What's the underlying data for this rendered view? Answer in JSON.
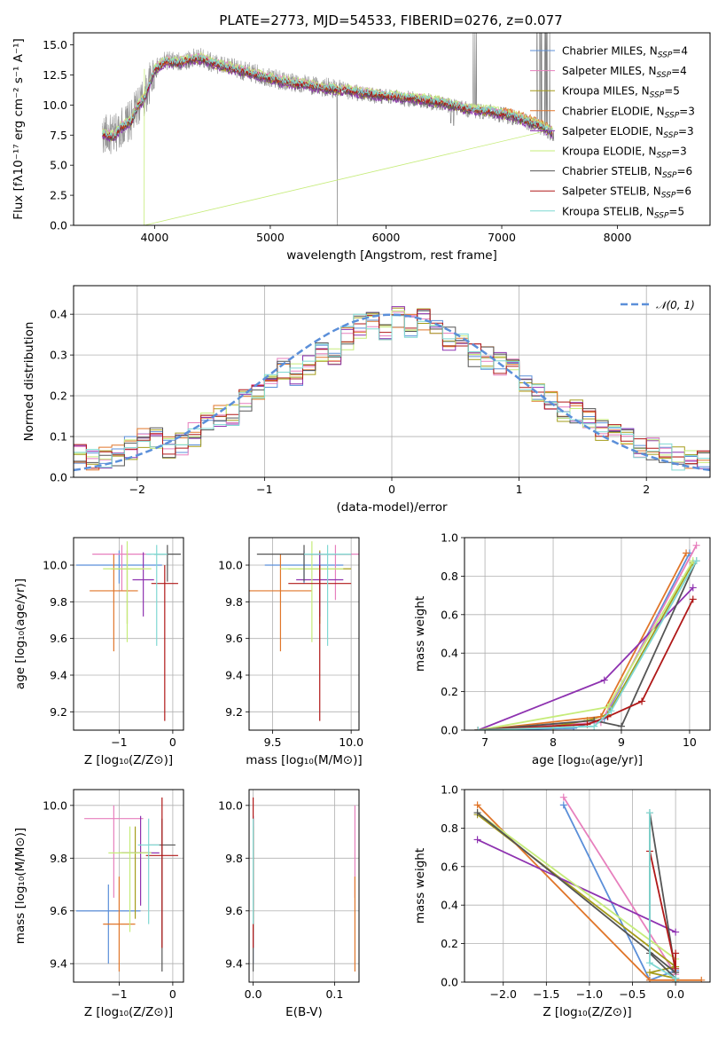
{
  "colors": {
    "Chabrier MILES": "#5b8fd9",
    "Salpeter MILES": "#e77fbd",
    "Kroupa MILES": "#a59c1a",
    "Chabrier ELODIE": "#e0762a",
    "Salpeter ELODIE": "#8e32b0",
    "Kroupa ELODIE": "#c6ec7a",
    "Chabrier STELIB": "#555555",
    "Salpeter STELIB": "#b01818",
    "Kroupa STELIB": "#7fd8d2",
    "grid": "#b0b0b0",
    "normal": "#5b8fd9"
  },
  "chart_data": [
    {
      "type": "line",
      "title": "PLATE=2773, MJD=54533, FIBERID=0276, z=0.077",
      "xlabel": "wavelength [Angstrom, rest frame]",
      "ylabel": "Flux [fλ10⁻¹⁷ erg cm⁻² s⁻¹ A⁻¹]",
      "xlim": [
        3300,
        8800
      ],
      "ylim": [
        0,
        16
      ],
      "xticks": [
        4000,
        5000,
        6000,
        7000,
        8000
      ],
      "yticks": [
        0.0,
        2.5,
        5.0,
        7.5,
        10.0,
        12.5,
        15.0
      ],
      "legend_position": "right",
      "series": [
        {
          "name": "Chabrier MILES, N_SSP=4"
        },
        {
          "name": "Salpeter MILES, N_SSP=4"
        },
        {
          "name": "Kroupa MILES, N_SSP=5"
        },
        {
          "name": "Chabrier ELODIE, N_SSP=3"
        },
        {
          "name": "Salpeter ELODIE, N_SSP=3"
        },
        {
          "name": "Kroupa ELODIE, N_SSP=3"
        },
        {
          "name": "Chabrier STELIB, N_SSP=6"
        },
        {
          "name": "Salpeter STELIB, N_SSP=6"
        },
        {
          "name": "Kroupa STELIB, N_SSP=5"
        }
      ],
      "spectrum_x": [
        3550,
        3650,
        3700,
        3800,
        3850,
        3920,
        3960,
        4000,
        4100,
        4200,
        4300,
        4400,
        4500,
        4700,
        4900,
        5100,
        5300,
        5500,
        5700,
        5900,
        6100,
        6300,
        6500,
        6700,
        6900,
        7100,
        7300,
        7450
      ],
      "spectrum_y": [
        7.5,
        7.3,
        8.0,
        8.6,
        9.8,
        10.6,
        11.8,
        12.8,
        13.6,
        13.4,
        13.7,
        13.8,
        13.4,
        12.9,
        12.4,
        11.9,
        11.6,
        11.3,
        11.1,
        10.8,
        10.6,
        10.4,
        10.1,
        9.6,
        9.4,
        9.0,
        8.3,
        7.6
      ]
    },
    {
      "type": "line",
      "xlabel": "(data-model)/error",
      "ylabel": "Normed distribution",
      "xlim": [
        -2.5,
        2.5
      ],
      "ylim": [
        0,
        0.47
      ],
      "xticks": [
        -2,
        -1,
        0,
        1,
        2
      ],
      "yticks": [
        0.0,
        0.1,
        0.2,
        0.3,
        0.4
      ],
      "grid": true,
      "legend_position": "top-right",
      "normal_label": "𝒩(0, 1)",
      "bin_edges": [
        -2.5,
        -2.4,
        -2.3,
        -2.2,
        -2.1,
        -2.0,
        -1.9,
        -1.8,
        -1.7,
        -1.6,
        -1.5,
        -1.4,
        -1.3,
        -1.2,
        -1.1,
        -1.0,
        -0.9,
        -0.8,
        -0.7,
        -0.6,
        -0.5,
        -0.4,
        -0.3,
        -0.2,
        -0.1,
        0.0,
        0.1,
        0.2,
        0.3,
        0.4,
        0.5,
        0.6,
        0.7,
        0.8,
        0.9,
        1.0,
        1.1,
        1.2,
        1.3,
        1.4,
        1.5,
        1.6,
        1.7,
        1.8,
        1.9,
        2.0,
        2.1,
        2.2,
        2.3,
        2.4,
        2.5
      ],
      "histogram_shape": [
        0.055,
        0.04,
        0.045,
        0.05,
        0.07,
        0.09,
        0.1,
        0.075,
        0.085,
        0.105,
        0.13,
        0.15,
        0.155,
        0.185,
        0.215,
        0.245,
        0.265,
        0.255,
        0.28,
        0.31,
        0.305,
        0.34,
        0.37,
        0.38,
        0.36,
        0.39,
        0.37,
        0.385,
        0.36,
        0.34,
        0.33,
        0.3,
        0.295,
        0.28,
        0.27,
        0.23,
        0.215,
        0.19,
        0.165,
        0.16,
        0.145,
        0.12,
        0.115,
        0.09,
        0.075,
        0.07,
        0.055,
        0.045,
        0.04,
        0.035
      ]
    },
    {
      "type": "scatter",
      "xlabel": "Z [log₁₀(Z/Z⊙)]",
      "ylabel": "age  [log₁₀(age/yr)]",
      "xlim": [
        -1.85,
        0.2
      ],
      "ylim": [
        9.1,
        10.15
      ],
      "xticks": [
        -1,
        0
      ],
      "yticks": [
        9.2,
        9.4,
        9.6,
        9.8,
        10.0
      ],
      "grid": true,
      "points": [
        {
          "series": "Chabrier MILES",
          "x": -1.0,
          "xerr": 0.8,
          "y": 10.0,
          "yerr": [
            0.1,
            0.08
          ]
        },
        {
          "series": "Salpeter MILES",
          "x": -0.95,
          "xerr": 0.55,
          "y": 10.06,
          "yerr": [
            0.2,
            0.05
          ]
        },
        {
          "series": "Kroupa MILES",
          "x": -0.85,
          "xerr": 0.3,
          "y": 9.98,
          "yerr": [
            0.3,
            0.1
          ]
        },
        {
          "series": "Chabrier ELODIE",
          "x": -1.1,
          "xerr": 0.45,
          "y": 9.86,
          "yerr": [
            0.33,
            0.2
          ]
        },
        {
          "series": "Salpeter ELODIE",
          "x": -0.55,
          "xerr": 0.2,
          "y": 9.92,
          "yerr": [
            0.2,
            0.15
          ]
        },
        {
          "series": "Kroupa ELODIE",
          "x": -0.85,
          "xerr": 0.45,
          "y": 9.98,
          "yerr": [
            0.4,
            0.15
          ]
        },
        {
          "series": "Chabrier STELIB",
          "x": -0.1,
          "xerr": 0.25,
          "y": 10.06,
          "yerr": [
            0.15,
            0.05
          ]
        },
        {
          "series": "Salpeter STELIB",
          "x": -0.15,
          "xerr": 0.25,
          "y": 9.9,
          "yerr": [
            0.75,
            0.1
          ]
        },
        {
          "series": "Kroupa STELIB",
          "x": -0.3,
          "xerr": 0.2,
          "y": 10.06,
          "yerr": [
            0.5,
            0.05
          ]
        }
      ]
    },
    {
      "type": "scatter",
      "xlabel": "mass [log₁₀(M/M⊙)]",
      "xlim": [
        9.35,
        10.05
      ],
      "ylim": [
        9.1,
        10.15
      ],
      "xticks": [
        9.5,
        10.0
      ],
      "yticks": [
        9.2,
        9.4,
        9.6,
        9.8,
        10.0
      ],
      "grid": true,
      "points": [
        {
          "series": "Chabrier MILES",
          "x": 9.7,
          "xerr": 0.25,
          "y": 10.0,
          "yerr": [
            0.1,
            0.08
          ]
        },
        {
          "series": "Salpeter MILES",
          "x": 9.9,
          "xerr": 0.2,
          "y": 10.06,
          "yerr": [
            0.25,
            0.05
          ]
        },
        {
          "series": "Kroupa MILES",
          "x": 9.8,
          "xerr": 0.2,
          "y": 9.98,
          "yerr": [
            0.3,
            0.1
          ]
        },
        {
          "series": "Chabrier ELODIE",
          "x": 9.55,
          "xerr": 0.2,
          "y": 9.86,
          "yerr": [
            0.33,
            0.2
          ]
        },
        {
          "series": "Salpeter ELODIE",
          "x": 9.8,
          "xerr": 0.15,
          "y": 9.92,
          "yerr": [
            0.2,
            0.15
          ]
        },
        {
          "series": "Kroupa ELODIE",
          "x": 9.75,
          "xerr": 0.2,
          "y": 9.98,
          "yerr": [
            0.4,
            0.15
          ]
        },
        {
          "series": "Chabrier STELIB",
          "x": 9.7,
          "xerr": 0.3,
          "y": 10.06,
          "yerr": [
            0.15,
            0.05
          ]
        },
        {
          "series": "Salpeter STELIB",
          "x": 9.8,
          "xerr": 0.2,
          "y": 9.9,
          "yerr": [
            0.75,
            0.1
          ]
        },
        {
          "series": "Kroupa STELIB",
          "x": 9.85,
          "xerr": 0.15,
          "y": 10.06,
          "yerr": [
            0.5,
            0.05
          ]
        }
      ]
    },
    {
      "type": "line",
      "xlabel": "age  [log₁₀(age/yr)]",
      "ylabel": "mass weight",
      "xlim": [
        6.7,
        10.3
      ],
      "ylim": [
        0,
        1.0
      ],
      "xticks": [
        7,
        8,
        9,
        10
      ],
      "yticks": [
        0.0,
        0.2,
        0.4,
        0.6,
        0.8,
        1.0
      ],
      "grid": true,
      "series": [
        {
          "series": "Chabrier MILES",
          "x": [
            6.9,
            8.3,
            8.75,
            10.0
          ],
          "y": [
            0.0,
            0.01,
            0.06,
            0.92
          ]
        },
        {
          "series": "Salpeter MILES",
          "x": [
            6.9,
            8.7,
            10.1
          ],
          "y": [
            0.0,
            0.04,
            0.96
          ]
        },
        {
          "series": "Kroupa MILES",
          "x": [
            6.9,
            8.0,
            8.5,
            8.8,
            10.05
          ],
          "y": [
            0.0,
            0.02,
            0.05,
            0.08,
            0.87
          ]
        },
        {
          "series": "Chabrier ELODIE",
          "x": [
            6.9,
            8.7,
            9.95
          ],
          "y": [
            0.0,
            0.07,
            0.92
          ]
        },
        {
          "series": "Salpeter ELODIE",
          "x": [
            6.9,
            8.75,
            10.05
          ],
          "y": [
            0.0,
            0.26,
            0.74
          ]
        },
        {
          "series": "Kroupa ELODIE",
          "x": [
            6.9,
            8.8,
            10.05
          ],
          "y": [
            0.0,
            0.12,
            0.88
          ]
        },
        {
          "series": "Chabrier STELIB",
          "x": [
            6.9,
            8.6,
            9.0,
            10.1
          ],
          "y": [
            0.0,
            0.05,
            0.02,
            0.88
          ]
        },
        {
          "series": "Salpeter STELIB",
          "x": [
            6.9,
            8.5,
            8.8,
            9.3,
            10.05
          ],
          "y": [
            0.0,
            0.03,
            0.07,
            0.15,
            0.68
          ]
        },
        {
          "series": "Kroupa STELIB",
          "x": [
            6.9,
            8.6,
            8.85,
            10.1
          ],
          "y": [
            0.0,
            0.02,
            0.1,
            0.88
          ]
        }
      ]
    },
    {
      "type": "scatter",
      "xlabel": "Z [log₁₀(Z/Z⊙)]",
      "ylabel": "mass [log₁₀(M/M⊙)]",
      "xlim": [
        -1.85,
        0.2
      ],
      "ylim": [
        9.33,
        10.06
      ],
      "xticks": [
        -1,
        0
      ],
      "yticks": [
        9.4,
        9.6,
        9.8,
        10.0
      ],
      "grid": true,
      "points": [
        {
          "series": "Chabrier MILES",
          "x": -1.2,
          "xerr": 0.6,
          "y": 9.6,
          "yerr": [
            0.2,
            0.1
          ]
        },
        {
          "series": "Salpeter MILES",
          "x": -1.1,
          "xerr": 0.55,
          "y": 9.95,
          "yerr": [
            0.3,
            0.05
          ]
        },
        {
          "series": "Kroupa MILES",
          "x": -0.7,
          "xerr": 0.3,
          "y": 9.82,
          "yerr": [
            0.25,
            0.1
          ]
        },
        {
          "series": "Chabrier ELODIE",
          "x": -1.0,
          "xerr": 0.3,
          "y": 9.55,
          "yerr": [
            0.18,
            0.18
          ]
        },
        {
          "series": "Salpeter ELODIE",
          "x": -0.6,
          "xerr": 0.35,
          "y": 9.82,
          "yerr": [
            0.2,
            0.14
          ]
        },
        {
          "series": "Kroupa ELODIE",
          "x": -0.8,
          "xerr": 0.4,
          "y": 9.82,
          "yerr": [
            0.3,
            0.1
          ]
        },
        {
          "series": "Chabrier STELIB",
          "x": -0.2,
          "xerr": 0.25,
          "y": 9.85,
          "yerr": [
            0.48,
            0.1
          ]
        },
        {
          "series": "Salpeter STELIB",
          "x": -0.2,
          "xerr": 0.3,
          "y": 9.81,
          "yerr": [
            0.35,
            0.22
          ]
        },
        {
          "series": "Kroupa STELIB",
          "x": -0.45,
          "xerr": 0.2,
          "y": 9.85,
          "yerr": [
            0.3,
            0.1
          ]
        }
      ]
    },
    {
      "type": "scatter",
      "xlabel": "E(B-V)",
      "xlim": [
        -0.005,
        0.13
      ],
      "ylim": [
        9.33,
        10.06
      ],
      "xticks": [
        0.0,
        0.1
      ],
      "yticks": [
        9.4,
        9.6,
        9.8,
        10.0
      ],
      "grid": true,
      "points": [
        {
          "series": "Chabrier MILES",
          "x": 0.0,
          "y": 9.6,
          "yerr": [
            0.2,
            0.1
          ]
        },
        {
          "series": "Salpeter MILES",
          "x": 0.125,
          "y": 9.95,
          "yerr": [
            0.3,
            0.05
          ]
        },
        {
          "series": "Kroupa MILES",
          "x": 0.0,
          "y": 9.82,
          "yerr": [
            0.25,
            0.1
          ]
        },
        {
          "series": "Chabrier ELODIE",
          "x": 0.125,
          "y": 9.55,
          "yerr": [
            0.18,
            0.18
          ]
        },
        {
          "series": "Salpeter ELODIE",
          "x": 0.0,
          "y": 9.82,
          "yerr": [
            0.2,
            0.14
          ]
        },
        {
          "series": "Kroupa ELODIE",
          "x": 0.0,
          "y": 9.82,
          "yerr": [
            0.3,
            0.1
          ]
        },
        {
          "series": "Chabrier STELIB",
          "x": 0.0,
          "y": 9.85,
          "yerr": [
            0.48,
            0.1
          ]
        },
        {
          "series": "Salpeter STELIB",
          "x": 0.0,
          "y": 9.81,
          "yerr": [
            0.35,
            0.22
          ]
        },
        {
          "series": "Kroupa STELIB",
          "x": 0.0,
          "y": 9.85,
          "yerr": [
            0.3,
            0.1
          ]
        }
      ]
    },
    {
      "type": "line",
      "xlabel": "Z [log₁₀(Z/Z⊙)]",
      "ylabel": "mass weight",
      "xlim": [
        -2.45,
        0.4
      ],
      "ylim": [
        0,
        1.0
      ],
      "xticks": [
        -2.0,
        -1.5,
        -1.0,
        -0.5,
        0.0
      ],
      "yticks": [
        0.0,
        0.2,
        0.4,
        0.6,
        0.8,
        1.0
      ],
      "grid": true,
      "series": [
        {
          "series": "Chabrier MILES",
          "x": [
            -1.3,
            -0.3,
            0.0
          ],
          "y": [
            0.92,
            0.01,
            0.06
          ]
        },
        {
          "series": "Salpeter MILES",
          "x": [
            -1.3,
            0.0
          ],
          "y": [
            0.96,
            0.04
          ]
        },
        {
          "series": "Kroupa MILES",
          "x": [
            -2.3,
            0.0,
            -0.3,
            0.0
          ],
          "y": [
            0.87,
            0.08,
            0.05,
            0.02
          ]
        },
        {
          "series": "Chabrier ELODIE",
          "x": [
            -2.3,
            -0.3,
            0.3
          ],
          "y": [
            0.92,
            0.01,
            0.01
          ]
        },
        {
          "series": "Salpeter ELODIE",
          "x": [
            -2.3,
            0.0
          ],
          "y": [
            0.74,
            0.26
          ]
        },
        {
          "series": "Kroupa ELODIE",
          "x": [
            -2.3,
            0.0
          ],
          "y": [
            0.88,
            0.12
          ]
        },
        {
          "series": "Chabrier STELIB",
          "x": [
            -2.3,
            0.0,
            -0.3,
            -0.3,
            0.0,
            0.0
          ],
          "y": [
            0.88,
            0.05,
            0.88,
            0.15,
            0.02,
            0.0
          ]
        },
        {
          "series": "Salpeter STELIB",
          "x": [
            -0.3,
            0.0,
            0.0
          ],
          "y": [
            0.68,
            0.07,
            0.15
          ]
        },
        {
          "series": "Kroupa STELIB",
          "x": [
            -0.3,
            -0.3,
            0.0,
            0.0
          ],
          "y": [
            0.88,
            0.1,
            0.02,
            0.0
          ]
        }
      ]
    }
  ]
}
